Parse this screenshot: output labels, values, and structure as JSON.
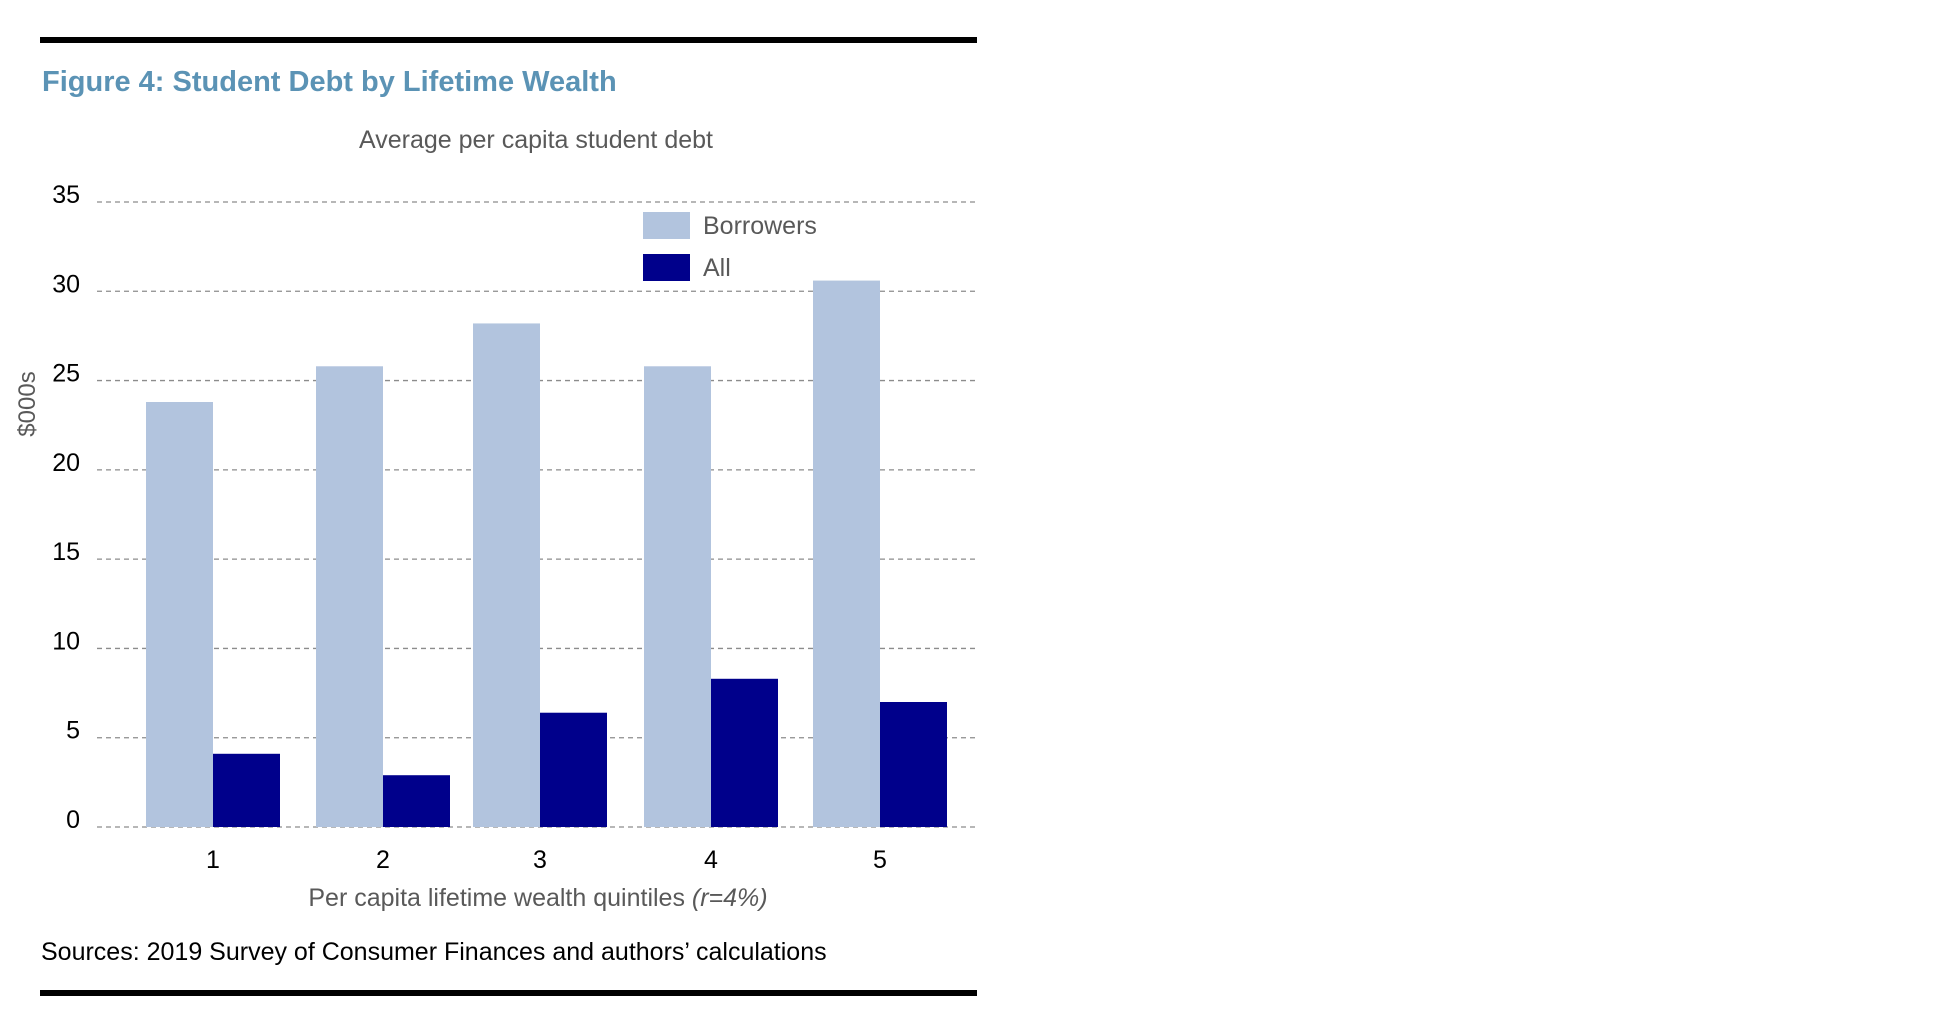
{
  "figure": {
    "title": "Figure 4: Student Debt by Lifetime Wealth",
    "source": "Sources: 2019 Survey of Consumer Finances and authors’ calculations"
  },
  "chart_data": {
    "type": "bar",
    "title": "Average per capita student debt",
    "xlabel": "Per capita lifetime wealth quintiles",
    "xlabel_note": "(r=4%)",
    "ylabel": "$000s",
    "categories": [
      "1",
      "2",
      "3",
      "4",
      "5"
    ],
    "series": [
      {
        "name": "Borrowers",
        "color": "#b2c4de",
        "values": [
          23.8,
          25.8,
          28.2,
          25.8,
          30.6
        ]
      },
      {
        "name": "All",
        "color": "#00008b",
        "values": [
          4.1,
          2.9,
          6.4,
          8.3,
          7.0
        ]
      }
    ],
    "ylim": [
      0,
      35
    ],
    "yticks": [
      "0",
      "5",
      "10",
      "15",
      "20",
      "25",
      "30",
      "35"
    ],
    "grid": true,
    "legend": "top-right",
    "colors": {
      "title": "#5b93b5",
      "text": "#595959",
      "grid": "#8c8c8c"
    }
  }
}
